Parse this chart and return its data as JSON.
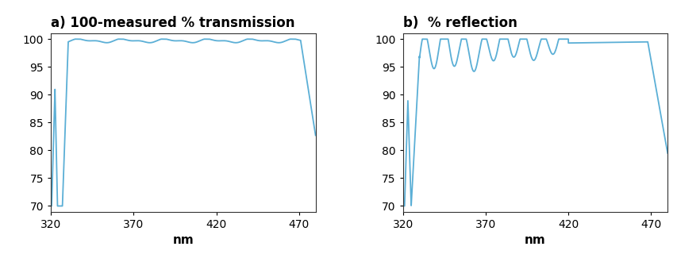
{
  "title_a": "a) 100-measured % transmission",
  "title_b": "b)  % reflection",
  "xlabel": "nm",
  "xlim": [
    320,
    480
  ],
  "ylim": [
    69,
    101
  ],
  "yticks": [
    70,
    75,
    80,
    85,
    90,
    95,
    100
  ],
  "xticks": [
    320,
    370,
    420,
    470
  ],
  "line_color": "#5bafd6",
  "line_width": 1.3,
  "bg_color": "#ffffff",
  "title_fontsize": 12,
  "axis_fontsize": 11,
  "tick_fontsize": 10
}
